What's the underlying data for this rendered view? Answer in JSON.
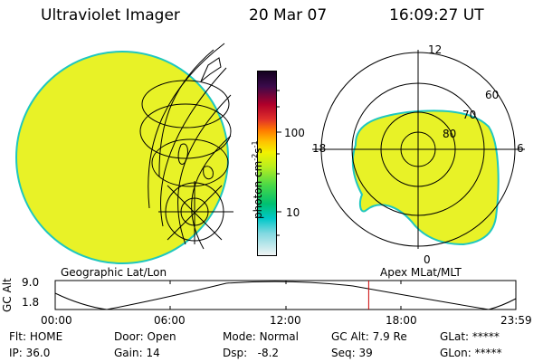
{
  "header": {
    "instrument": "Ultraviolet Imager",
    "date": "20 Mar 07",
    "time": "16:09:27 UT"
  },
  "colorbar": {
    "unit": "photon cm^-2 s^-1",
    "unit_prefix": "photon cm",
    "unit_exp1": "-2",
    "unit_mid": "s",
    "unit_exp2": "-1",
    "tick_high": "100",
    "tick_low": "10"
  },
  "polar": {
    "lat_labels": [
      "60",
      "70",
      "80"
    ],
    "mlt_labels": [
      "12",
      "18",
      "6",
      "0"
    ]
  },
  "labels": {
    "left_projection": "Geographic Lat/Lon",
    "right_projection": "Apex MLat/MLT"
  },
  "timeline": {
    "y_label": "GC Alt",
    "y_top": "9.0",
    "y_bottom": "1.8",
    "x_ticks": [
      "00:00",
      "06:00",
      "12:00",
      "18:00",
      "23:59"
    ],
    "current_marker_fraction": 0.6805,
    "marker_color": "#cc0000"
  },
  "status": {
    "flt_label": "Flt:",
    "flt_value": "HOME",
    "ip_label": "IP:",
    "ip_value": "36.0",
    "door_label": "Door:",
    "door_value": "Open",
    "gain_label": "Gain:",
    "gain_value": "14",
    "mode_label": "Mode:",
    "mode_value": "Normal",
    "dsp_label": "Dsp:",
    "dsp_value": "-8.2",
    "gcalt_label": "GC Alt:",
    "gcalt_value": "7.9 Re",
    "seq_label": "Seq:",
    "seq_value": "39",
    "glat_label": "GLat:",
    "glat_value": "*****",
    "glon_label": "GLon:",
    "glon_value": "*****"
  },
  "colors": {
    "image_fill": "#e8f227",
    "image_edge": "#1fc7bf"
  }
}
